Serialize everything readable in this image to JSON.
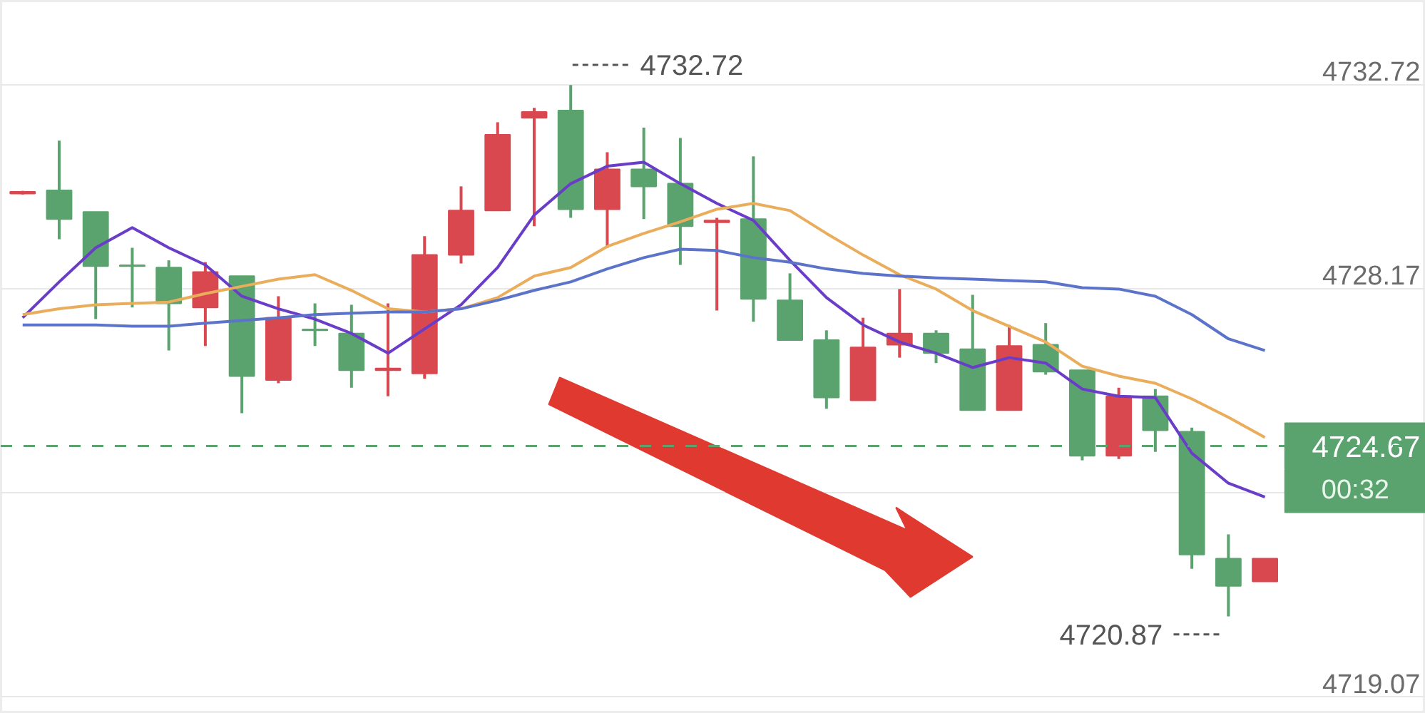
{
  "chart_data": {
    "type": "candlestick",
    "categories": [
      null,
      null,
      null,
      null,
      null,
      null,
      null,
      null,
      null,
      null,
      null,
      null,
      null,
      null,
      null,
      null,
      null,
      null,
      null,
      null,
      null,
      null,
      null,
      null,
      null,
      null,
      null,
      null,
      null,
      null,
      null,
      null,
      null,
      null,
      null
    ],
    "ohlc": [
      [
        4730.34,
        4730.36,
        4730.28,
        4730.3
      ],
      [
        4730.37,
        4731.48,
        4729.28,
        4729.73
      ],
      [
        4729.89,
        4729.89,
        4727.5,
        4728.68
      ],
      [
        4728.7,
        4729.09,
        4727.76,
        4728.68
      ],
      [
        4728.65,
        4728.81,
        4726.8,
        4727.85
      ],
      [
        4727.76,
        4728.77,
        4726.9,
        4728.55
      ],
      [
        4728.46,
        4728.46,
        4725.4,
        4726.23
      ],
      [
        4726.14,
        4728.01,
        4726.07,
        4727.53
      ],
      [
        4727.27,
        4727.85,
        4726.9,
        4727.25
      ],
      [
        4727.18,
        4727.82,
        4725.97,
        4726.36
      ],
      [
        4726.36,
        4727.85,
        4725.78,
        4726.4
      ],
      [
        4726.29,
        4729.35,
        4726.17,
        4728.93
      ],
      [
        4728.93,
        4730.46,
        4728.74,
        4729.92
      ],
      [
        4729.92,
        4731.89,
        4729.92,
        4731.61
      ],
      [
        4731.99,
        4732.21,
        4729.57,
        4732.12
      ],
      [
        4732.15,
        4732.72,
        4729.76,
        4729.95
      ],
      [
        4729.95,
        4731.22,
        4729.09,
        4730.84
      ],
      [
        4730.84,
        4731.77,
        4729.73,
        4730.46
      ],
      [
        4730.52,
        4731.54,
        4728.71,
        4729.57
      ],
      [
        4729.66,
        4729.76,
        4727.69,
        4729.7
      ],
      [
        4729.73,
        4731.13,
        4727.44,
        4727.95
      ],
      [
        4727.92,
        4728.52,
        4727.03,
        4727.03
      ],
      [
        4727.03,
        4727.25,
        4725.5,
        4725.75
      ],
      [
        4725.69,
        4727.53,
        4725.69,
        4726.87
      ],
      [
        4726.93,
        4728.17,
        4726.64,
        4727.18
      ],
      [
        4727.18,
        4727.25,
        4726.52,
        4726.74
      ],
      [
        4726.83,
        4728.04,
        4725.47,
        4725.47
      ],
      [
        4725.47,
        4727.37,
        4725.47,
        4726.9
      ],
      [
        4726.93,
        4727.41,
        4726.26,
        4726.33
      ],
      [
        4726.36,
        4726.36,
        4724.35,
        4724.45
      ],
      [
        4724.45,
        4725.97,
        4724.38,
        4725.78
      ],
      [
        4725.78,
        4725.94,
        4724.54,
        4725.02
      ],
      [
        4724.99,
        4725.08,
        4721.93,
        4722.25
      ],
      [
        4722.16,
        4722.7,
        4720.87,
        4721.55
      ],
      [
        4721.65,
        4722.16,
        4721.65,
        4722.16
      ]
    ],
    "colors": [
      "#d9474f",
      "#5aa36e",
      "#5aa36e",
      "#5aa36e",
      "#5aa36e",
      "#d9474f",
      "#5aa36e",
      "#d9474f",
      "#5aa36e",
      "#5aa36e",
      "#d9474f",
      "#d9474f",
      "#d9474f",
      "#d9474f",
      "#d9474f",
      "#5aa36e",
      "#d9474f",
      "#5aa36e",
      "#5aa36e",
      "#d9474f",
      "#5aa36e",
      "#5aa36e",
      "#5aa36e",
      "#d9474f",
      "#d9474f",
      "#5aa36e",
      "#5aa36e",
      "#d9474f",
      "#5aa36e",
      "#5aa36e",
      "#d9474f",
      "#5aa36e",
      "#5aa36e",
      "#5aa36e",
      "#d9474f"
    ],
    "series": [
      {
        "type": "line",
        "color": "#6a3dc9",
        "values": [
          4727.53,
          4728.33,
          4729.09,
          4729.54,
          4729.09,
          4728.71,
          4728.01,
          4727.73,
          4727.5,
          4727.18,
          4726.74,
          4727.28,
          4727.82,
          4728.65,
          4729.82,
          4730.52,
          4730.91,
          4731.0,
          4730.52,
          4730.08,
          4729.7,
          4728.81,
          4727.98,
          4727.37,
          4726.99,
          4726.74,
          4726.42,
          4726.64,
          4726.52,
          4725.94,
          4725.78,
          4725.75,
          4724.51,
          4723.84,
          4723.53
        ]
      },
      {
        "type": "line",
        "color": "#e9ad5b",
        "values": [
          4727.6,
          4727.73,
          4727.82,
          4727.85,
          4727.88,
          4728.07,
          4728.23,
          4728.39,
          4728.49,
          4728.14,
          4727.73,
          4727.66,
          4727.73,
          4727.98,
          4728.46,
          4728.65,
          4729.12,
          4729.41,
          4729.67,
          4729.95,
          4730.08,
          4729.92,
          4729.41,
          4728.93,
          4728.49,
          4728.17,
          4727.69,
          4727.34,
          4726.99,
          4726.45,
          4726.23,
          4726.07,
          4725.72,
          4725.31,
          4724.86
        ]
      },
      {
        "type": "line",
        "color": "#5b73c9",
        "values": [
          4727.37,
          4727.37,
          4727.37,
          4727.34,
          4727.34,
          4727.41,
          4727.47,
          4727.53,
          4727.6,
          4727.63,
          4727.66,
          4727.66,
          4727.73,
          4727.92,
          4728.14,
          4728.33,
          4728.62,
          4728.87,
          4729.06,
          4729.03,
          4728.87,
          4728.77,
          4728.62,
          4728.52,
          4728.46,
          4728.42,
          4728.39,
          4728.36,
          4728.33,
          4728.2,
          4728.17,
          4728.01,
          4727.6,
          4727.06,
          4726.8
        ]
      }
    ],
    "ylim": [
      4718.7,
      4734.6
    ],
    "yticks": [
      4719.07,
      {
        "value": 4723.62,
        "label": null
      },
      4728.17,
      4732.72
    ],
    "grid": "y",
    "ref_lines": [
      {
        "axis": "y",
        "value": 4724.67,
        "label": "4724.67",
        "color": "#5aa36e",
        "line_style": "dashed"
      }
    ],
    "annotations": [
      "4732.72",
      "4720.87",
      "00:32"
    ]
  }
}
